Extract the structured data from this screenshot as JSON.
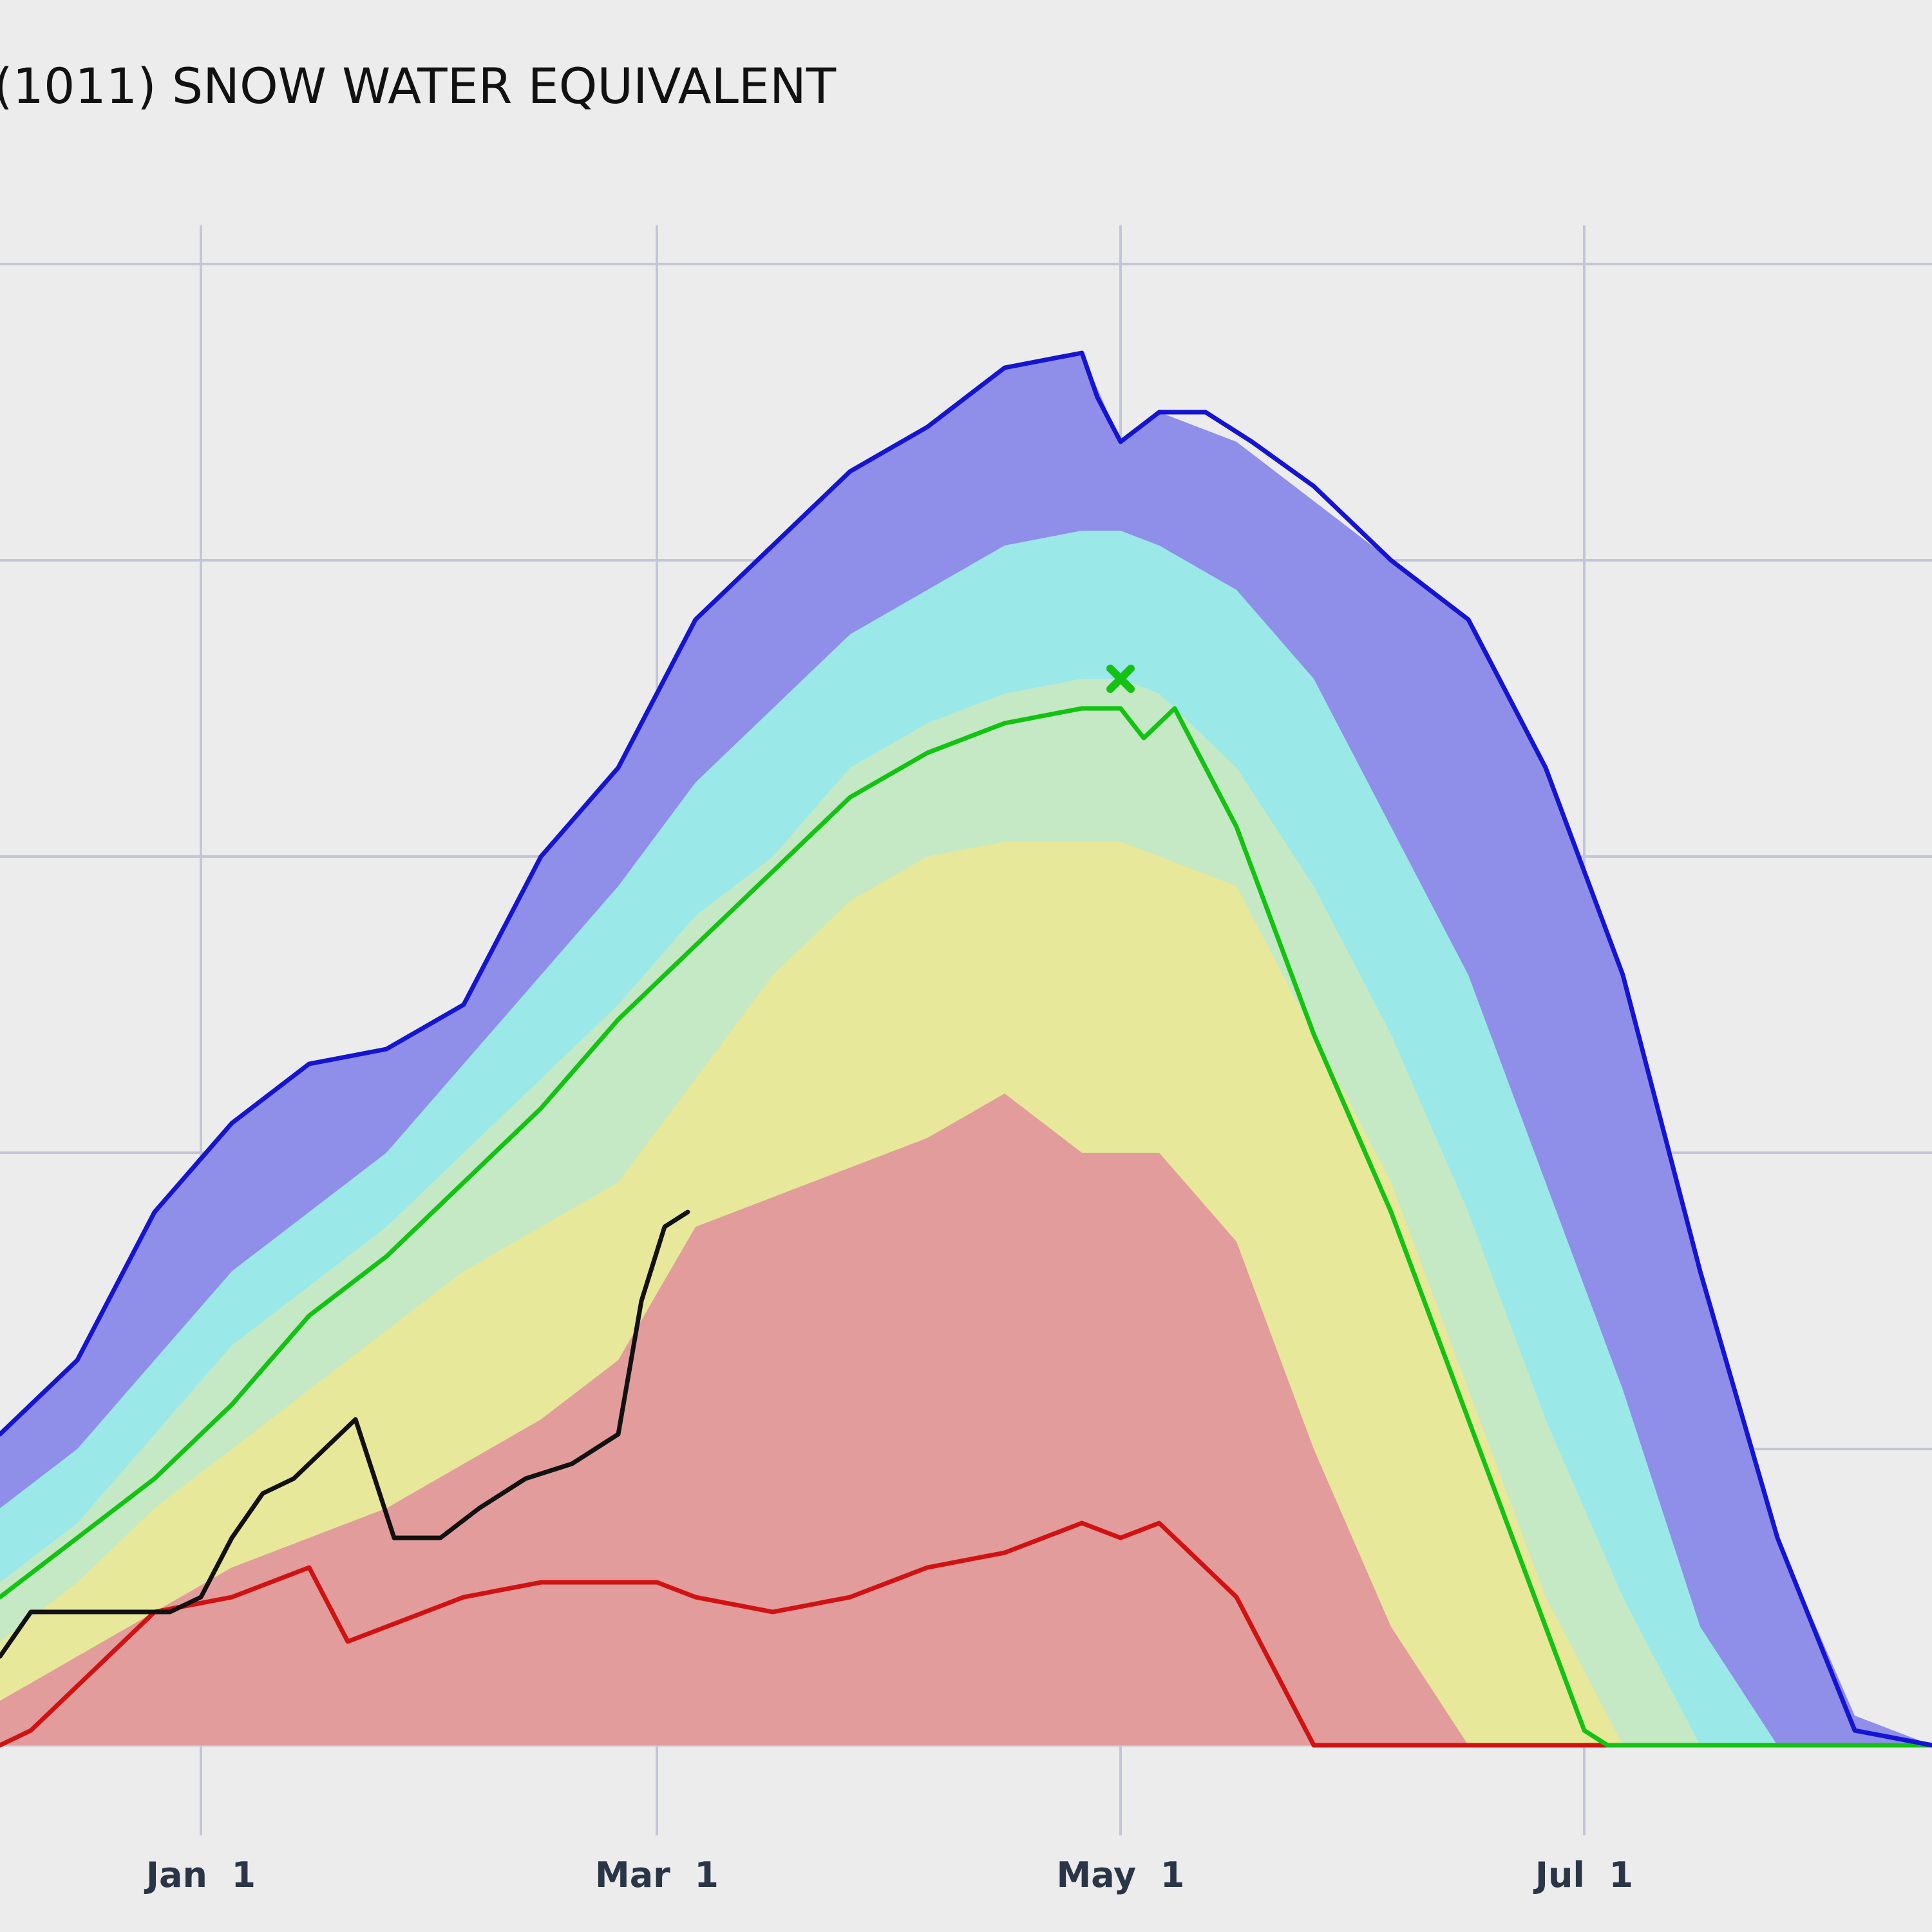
{
  "chart_data": {
    "type": "area",
    "title": "(1011) SNOW WATER EQUIVALENT",
    "xlabel": "",
    "ylabel": "",
    "x_ticks": [
      "Jan  1",
      "Mar  1",
      "May  1",
      "Jul  1"
    ],
    "x_tick_days": [
      50,
      109,
      169,
      229
    ],
    "x_range_days": [
      24,
      274
    ],
    "y_range": [
      0,
      5
    ],
    "y_grid": [
      0,
      1,
      2,
      3,
      4,
      5
    ],
    "grid": true,
    "x": [
      24,
      34,
      44,
      54,
      64,
      74,
      84,
      94,
      104,
      114,
      124,
      134,
      144,
      154,
      164,
      169,
      174,
      184,
      194,
      204,
      214,
      224,
      234,
      244,
      254,
      264,
      274
    ],
    "bands": [
      {
        "name": "max",
        "color": "#8f8fe9",
        "values": [
          1.05,
          1.3,
          1.8,
          2.1,
          2.3,
          2.35,
          2.5,
          3.0,
          3.3,
          3.8,
          4.05,
          4.3,
          4.45,
          4.65,
          4.7,
          4.4,
          4.5,
          4.4,
          4.2,
          4.0,
          3.8,
          3.3,
          2.6,
          1.6,
          0.7,
          0.1,
          0.0
        ],
        "line_color": "#1414d2"
      },
      {
        "name": "p90",
        "color": "#9be8e8",
        "values": [
          0.8,
          1.0,
          1.3,
          1.6,
          1.8,
          2.0,
          2.3,
          2.6,
          2.9,
          3.25,
          3.5,
          3.75,
          3.9,
          4.05,
          4.1,
          4.1,
          4.05,
          3.9,
          3.6,
          3.1,
          2.6,
          1.9,
          1.2,
          0.4,
          0.0,
          0.0,
          0.0
        ]
      },
      {
        "name": "p70",
        "color": "#c4e9c4",
        "values": [
          0.55,
          0.75,
          1.05,
          1.35,
          1.55,
          1.75,
          2.0,
          2.25,
          2.5,
          2.8,
          3.0,
          3.3,
          3.45,
          3.55,
          3.6,
          3.6,
          3.55,
          3.3,
          2.9,
          2.4,
          1.8,
          1.1,
          0.5,
          0.0,
          0.0,
          0.0,
          0.0
        ]
      },
      {
        "name": "p50-area",
        "color": "#e8e89b",
        "values": [
          0.35,
          0.55,
          0.8,
          1.0,
          1.2,
          1.4,
          1.6,
          1.75,
          1.9,
          2.25,
          2.6,
          2.85,
          3.0,
          3.05,
          3.05,
          3.05,
          3.0,
          2.9,
          2.4,
          1.9,
          1.2,
          0.5,
          0.0,
          0.0,
          0.0,
          0.0,
          0.0
        ]
      },
      {
        "name": "p30",
        "color": "#e39c9c",
        "values": [
          0.15,
          0.3,
          0.45,
          0.6,
          0.7,
          0.8,
          0.95,
          1.1,
          1.3,
          1.75,
          1.85,
          1.95,
          2.05,
          2.2,
          2.0,
          2.0,
          2.0,
          1.7,
          1.0,
          0.4,
          0.0,
          0.0,
          0.0,
          0.0,
          0.0,
          0.0,
          0.0
        ]
      }
    ],
    "series": [
      {
        "name": "",
        "color": "#d11212",
        "stroke": 7,
        "x": [
          24,
          28,
          34,
          44,
          54,
          64,
          69,
          74,
          84,
          94,
          104,
          109,
          114,
          124,
          134,
          144,
          154,
          164,
          169,
          174,
          184,
          194,
          199,
          204,
          214,
          224,
          234,
          244,
          254,
          274
        ],
        "y": [
          0.0,
          0.05,
          0.2,
          0.45,
          0.5,
          0.6,
          0.35,
          0.4,
          0.5,
          0.55,
          0.55,
          0.55,
          0.5,
          0.45,
          0.5,
          0.6,
          0.65,
          0.75,
          0.7,
          0.75,
          0.5,
          0.0,
          0.0,
          0.0,
          0.0,
          0.0,
          0.0,
          0.0,
          0.0,
          0.0
        ]
      },
      {
        "name": "",
        "color": "#12c312",
        "stroke": 7,
        "x": [
          24,
          34,
          44,
          54,
          64,
          74,
          84,
          94,
          104,
          114,
          124,
          134,
          144,
          154,
          164,
          169,
          172,
          176,
          180,
          184,
          194,
          204,
          214,
          224,
          229,
          232,
          234,
          244,
          254,
          274
        ],
        "y": [
          0.5,
          0.7,
          0.9,
          1.15,
          1.45,
          1.65,
          1.9,
          2.15,
          2.45,
          2.7,
          2.95,
          3.2,
          3.35,
          3.45,
          3.5,
          3.5,
          3.4,
          3.5,
          3.3,
          3.1,
          2.4,
          1.8,
          1.1,
          0.4,
          0.05,
          0.0,
          0.0,
          0.0,
          0.0,
          0.0
        ]
      },
      {
        "name": "",
        "color": "#1414d2",
        "stroke": 7,
        "x": [
          24,
          34,
          44,
          54,
          64,
          74,
          84,
          94,
          104,
          114,
          124,
          134,
          144,
          154,
          164,
          166,
          169,
          174,
          180,
          186,
          194,
          204,
          214,
          224,
          234,
          244,
          254,
          264,
          274
        ],
        "y": [
          1.05,
          1.3,
          1.8,
          2.1,
          2.3,
          2.35,
          2.5,
          3.0,
          3.3,
          3.8,
          4.05,
          4.3,
          4.45,
          4.65,
          4.7,
          4.55,
          4.4,
          4.5,
          4.5,
          4.4,
          4.25,
          4.0,
          3.8,
          3.3,
          2.6,
          1.6,
          0.7,
          0.05,
          0.0
        ]
      },
      {
        "name": "",
        "color": "#111111",
        "stroke": 7,
        "x": [
          24,
          28,
          34,
          40,
          46,
          50,
          54,
          58,
          62,
          66,
          70,
          75,
          81,
          86,
          92,
          98,
          104,
          107,
          110,
          113
        ],
        "y": [
          0.3,
          0.45,
          0.45,
          0.45,
          0.45,
          0.5,
          0.7,
          0.85,
          0.9,
          1.0,
          1.1,
          0.7,
          0.7,
          0.8,
          0.9,
          0.95,
          1.05,
          1.5,
          1.75,
          1.8
        ]
      }
    ],
    "markers": [
      {
        "name": "",
        "symbol": "x",
        "color": "#12c312",
        "x": 169,
        "y": 3.6
      }
    ]
  }
}
